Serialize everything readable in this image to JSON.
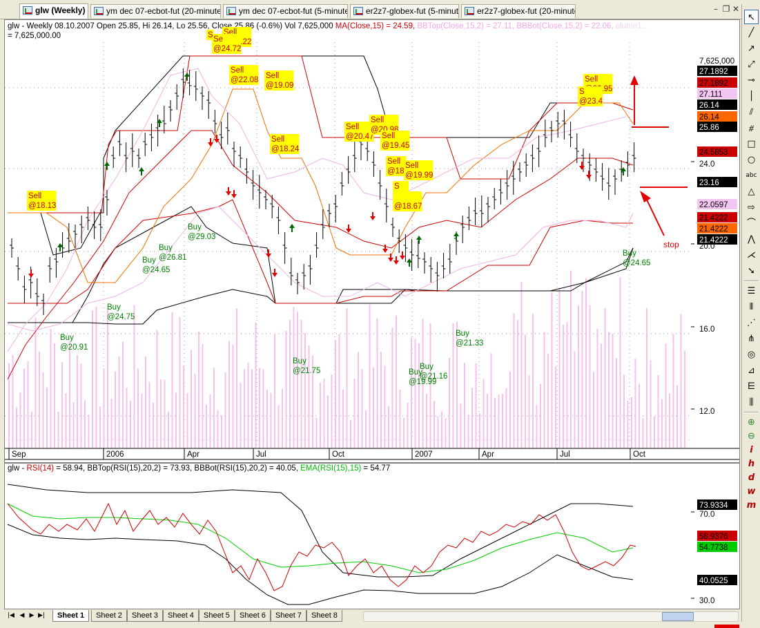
{
  "tabs": [
    {
      "label": "glw (Weekly)",
      "active": true
    },
    {
      "label": "ym    dec 07-ecbot-fut (20-minute)",
      "active": false
    },
    {
      "label": "ym    dec 07-ecbot-fut (5-minute)",
      "active": false
    },
    {
      "label": "er2z7-globex-fut (5-minute)",
      "active": false
    },
    {
      "label": "er2z7-globex-fut (20-minute)",
      "active": false
    }
  ],
  "window_buttons": {
    "minimize": "–",
    "restore": "❐",
    "close": "✕"
  },
  "chart": {
    "header_line1_prefix": "glw - Weekly 08.10.2007 Open 25.85, Hi 26.14, Lo 25.56, Close 25.86 (-0.6%) Vol 7,625,000 ",
    "header_ma": "MA(Close,15) = 24.59, ",
    "header_bbtop": "BBTop(Close,15,2) = 27.11, ",
    "header_bbbot": "BBBot(Close,15,2) = 22.06, ",
    "header_volume": "olume1...",
    "header_line2": "= 7,625,000.00",
    "colors": {
      "ma": "#cc0000",
      "bb": "#f2b3e6",
      "volume": "#f6c2ec",
      "price_bars": "#000000",
      "buy": "#008000",
      "sell_bg": "#ffff00",
      "sell_text": "#cc0000",
      "rsi": "#cc0000",
      "ema": "#00cc00"
    },
    "price_scale": [
      {
        "label": "7,625,000",
        "bg": "#ffffff",
        "fg": "#000000"
      },
      {
        "label": "27.1892",
        "bg": "#000000",
        "fg": "#ffffff"
      },
      {
        "label": "27.1892",
        "bg": "#cc0000",
        "fg": "#000000"
      },
      {
        "label": "27.111",
        "bg": "#f2c6f0",
        "fg": "#000000"
      },
      {
        "label": "26.14",
        "bg": "#000000",
        "fg": "#ffffff"
      },
      {
        "label": "26.14",
        "bg": "#ff6600",
        "fg": "#000000"
      },
      {
        "label": "25.86",
        "bg": "#000000",
        "fg": "#ffffff"
      },
      {
        "label": "24.5853",
        "bg": "#cc0000",
        "fg": "#000000"
      },
      {
        "label": "24.0",
        "bg": "none",
        "fg": "#000000"
      },
      {
        "label": "23.16",
        "bg": "#000000",
        "fg": "#ffffff"
      },
      {
        "label": "22.0597",
        "bg": "#f2c6f0",
        "fg": "#000000"
      },
      {
        "label": "21.4222",
        "bg": "#cc0000",
        "fg": "#000000"
      },
      {
        "label": "21.4222",
        "bg": "#ff6600",
        "fg": "#000000"
      },
      {
        "label": "21.4222",
        "bg": "#000000",
        "fg": "#ffffff"
      },
      {
        "label": "20.0",
        "bg": "none",
        "fg": "#000000"
      },
      {
        "label": "16.0",
        "bg": "none",
        "fg": "#000000"
      },
      {
        "label": "12.0",
        "bg": "none",
        "fg": "#000000"
      }
    ],
    "x_axis": [
      "Sep",
      "2006",
      "Apr",
      "Jul",
      "Oct",
      "2007",
      "Apr",
      "Jul",
      "Oct"
    ],
    "annotations": [
      {
        "kind": "sell",
        "label": "Sell",
        "price": "@18.13"
      },
      {
        "kind": "sell",
        "label": "Sell",
        "price": "@22.22"
      },
      {
        "kind": "sell",
        "label": "Se",
        "price": "@24.72"
      },
      {
        "kind": "sell",
        "label": "S",
        "price": ""
      },
      {
        "kind": "sell",
        "label": "Sell",
        "price": "@22.08"
      },
      {
        "kind": "sell",
        "label": "Sell",
        "price": "@19.09"
      },
      {
        "kind": "sell",
        "label": "Sell",
        "price": "@18.24"
      },
      {
        "kind": "sell",
        "label": "Sell",
        "price": "@20.47"
      },
      {
        "kind": "sell",
        "label": "Sell",
        "price": "@20.98"
      },
      {
        "kind": "sell",
        "label": "Sell",
        "price": "@19.45"
      },
      {
        "kind": "sell",
        "label": "Sell",
        "price": "@18"
      },
      {
        "kind": "sell",
        "label": "Sell",
        "price": "@19.99"
      },
      {
        "kind": "sell",
        "label": "S",
        "price": "@19"
      },
      {
        "kind": "sell",
        "label": "",
        "price": "@18.67"
      },
      {
        "kind": "sell",
        "label": "Sell",
        "price": "@22.95"
      },
      {
        "kind": "sell",
        "label": "S",
        "price": "@23.4"
      },
      {
        "kind": "buy",
        "label": "Buy",
        "price": "@20.91"
      },
      {
        "kind": "buy",
        "label": "Buy",
        "price": "@24.75"
      },
      {
        "kind": "buy",
        "label": "Buy",
        "price": "@24.65"
      },
      {
        "kind": "buy",
        "label": "Buy",
        "price": "@26.81"
      },
      {
        "kind": "buy",
        "label": "Buy",
        "price": "@29.03"
      },
      {
        "kind": "buy",
        "label": "Buy",
        "price": "@21.75"
      },
      {
        "kind": "buy",
        "label": "Buy",
        "price": "@19.99"
      },
      {
        "kind": "buy",
        "label": "Buy",
        "price": "@21.16"
      },
      {
        "kind": "buy",
        "label": "Buy",
        "price": "@21.33"
      },
      {
        "kind": "buy",
        "label": "Buy",
        "price": "@24.65"
      }
    ],
    "stop_label": "stop"
  },
  "rsi": {
    "header_prefix": "glw - ",
    "header_rsi": "RSI(14)",
    "header_rsi_val": " = 58.94, BBTop(RSI(15),20,2) = 73.93, BBBot(RSI(15),20,2) = 40.05, ",
    "header_ema": "EMA(RSI(15),15)",
    "header_ema_val": " = 54.77",
    "scale": [
      {
        "label": "73.9334",
        "bg": "#000000",
        "fg": "#ffffff"
      },
      {
        "label": "70.0",
        "bg": "none",
        "fg": "#000000"
      },
      {
        "label": "58.9376",
        "bg": "#cc0000",
        "fg": "#000000"
      },
      {
        "label": "54.7738",
        "bg": "#00cc00",
        "fg": "#000000"
      },
      {
        "label": "40.0525",
        "bg": "#000000",
        "fg": "#ffffff"
      },
      {
        "label": "30.0",
        "bg": "none",
        "fg": "#000000"
      }
    ]
  },
  "sheets": [
    "Sheet 1",
    "Sheet 2",
    "Sheet 3",
    "Sheet 4",
    "Sheet 5",
    "Sheet 6",
    "Sheet 7",
    "Sheet 8"
  ],
  "toolbar": [
    {
      "name": "cursor-select-icon",
      "glyph": "↖"
    },
    {
      "name": "line-tool-icon",
      "glyph": "╱"
    },
    {
      "name": "ray-tool-icon",
      "glyph": "↗"
    },
    {
      "name": "extended-line-icon",
      "glyph": "⤢"
    },
    {
      "name": "horizontal-line-icon",
      "glyph": "⊸"
    },
    {
      "name": "vertical-line-icon",
      "glyph": "│"
    },
    {
      "name": "parallel-lines-icon",
      "glyph": "⫽"
    },
    {
      "name": "channel-icon",
      "glyph": "⧣"
    },
    {
      "name": "rectangle-icon",
      "glyph": "□"
    },
    {
      "name": "ellipse-icon",
      "glyph": "○"
    },
    {
      "name": "text-tool-icon",
      "glyph": "abc"
    },
    {
      "name": "triangle-icon",
      "glyph": "△"
    },
    {
      "name": "arrow-icon",
      "glyph": "⇨"
    },
    {
      "name": "arc-icon",
      "glyph": "⌒"
    },
    {
      "name": "polyline-icon",
      "glyph": "⋀"
    },
    {
      "name": "zigzag-icon",
      "glyph": "⋌"
    },
    {
      "name": "pointer-icon",
      "glyph": "➘"
    },
    {
      "name": "fibonacci-retracement-icon",
      "glyph": "☰"
    },
    {
      "name": "fibonacci-timezones-icon",
      "glyph": "⦀"
    },
    {
      "name": "gann-fan-icon",
      "glyph": "⋰"
    },
    {
      "name": "andrews-pitchfork-icon",
      "glyph": "⋔"
    },
    {
      "name": "cycles-icon",
      "glyph": "◎"
    },
    {
      "name": "fan-icon",
      "glyph": "⊿"
    },
    {
      "name": "speed-lines-icon",
      "glyph": "⋿"
    },
    {
      "name": "grid-icon",
      "glyph": "⫼"
    },
    {
      "name": "zoom-in-icon",
      "glyph": "⊕"
    },
    {
      "name": "zoom-out-icon",
      "glyph": "⊖"
    },
    {
      "name": "intraday-icon",
      "glyph": "i"
    },
    {
      "name": "hourly-icon",
      "glyph": "h"
    },
    {
      "name": "daily-icon",
      "glyph": "d"
    },
    {
      "name": "weekly-icon",
      "glyph": "w"
    },
    {
      "name": "monthly-icon",
      "glyph": "m"
    }
  ],
  "stop_arrow_color": "#e00000"
}
